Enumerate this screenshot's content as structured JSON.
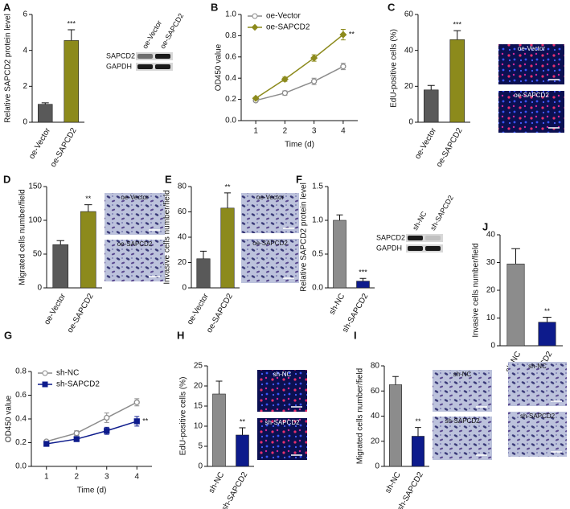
{
  "chart_data": [
    {
      "type": "bar",
      "label": "A",
      "ylabel": "Relative SAPCD2 protein level",
      "categories": [
        "oe-Vector",
        "oe-SAPCD2"
      ],
      "values": [
        1.0,
        4.55
      ],
      "errors": [
        0.08,
        0.6
      ],
      "colors": [
        "#595959",
        "#8c8a1c"
      ],
      "ylim": [
        0,
        6
      ],
      "yticks": [
        0,
        2,
        4,
        6
      ],
      "annotation": "***",
      "blot": {
        "rows": [
          "SAPCD2",
          "GAPDH"
        ],
        "lanes": [
          "oe-Vector",
          "oe-SAPCD2"
        ]
      }
    },
    {
      "type": "line",
      "label": "B",
      "ylabel": "OD450 value",
      "xlabel": "Time (d)",
      "x": [
        1,
        2,
        3,
        4
      ],
      "xlim": [
        0.5,
        4.5
      ],
      "xticks": [
        1,
        2,
        3,
        4
      ],
      "ylim": [
        0,
        1.0
      ],
      "yticks": [
        {
          "value": 0,
          "label": "0.0"
        },
        0.2,
        0.4,
        0.6,
        0.8,
        {
          "value": 1,
          "label": "1.0"
        }
      ],
      "series": [
        {
          "name": "oe-Vector",
          "color": "#8c8c8c",
          "marker": "open-circle",
          "values": [
            0.19,
            0.26,
            0.37,
            0.51
          ],
          "errors": [
            0.01,
            0.02,
            0.03,
            0.03
          ]
        },
        {
          "name": "oe-SAPCD2",
          "color": "#8c8a1c",
          "marker": "diamond",
          "values": [
            0.21,
            0.39,
            0.59,
            0.81
          ],
          "errors": [
            0.01,
            0.02,
            0.03,
            0.05
          ]
        }
      ],
      "annotation": "**",
      "legend": "upper left"
    },
    {
      "type": "bar",
      "label": "C",
      "ylabel": "EdU-positive cells (%)",
      "categories": [
        "oe-Vector",
        "oe-SAPCD2"
      ],
      "values": [
        18,
        46
      ],
      "errors": [
        2.5,
        5
      ],
      "colors": [
        "#595959",
        "#8c8a1c"
      ],
      "ylim": [
        0,
        60
      ],
      "yticks": [
        0,
        20,
        40,
        60
      ],
      "annotation": "***",
      "image_labels": [
        "oe-Vector",
        "oe-SAPCD2"
      ],
      "image_style": "fluorescence"
    },
    {
      "type": "bar",
      "label": "D",
      "ylabel": "Migrated cells number/field",
      "categories": [
        "oe-Vector",
        "oe-SAPCD2"
      ],
      "values": [
        64,
        113
      ],
      "errors": [
        6,
        10
      ],
      "colors": [
        "#595959",
        "#8c8a1c"
      ],
      "ylim": [
        0,
        150
      ],
      "yticks": [
        0,
        50,
        100,
        150
      ],
      "annotation": "**",
      "image_labels": [
        "oe-Vector",
        "oe-SAPCD2"
      ],
      "image_style": "stain"
    },
    {
      "type": "bar",
      "label": "E",
      "ylabel": "Invasive cells number/field",
      "categories": [
        "oe-Vector",
        "oe-SAPCD2"
      ],
      "values": [
        23,
        63
      ],
      "errors": [
        6,
        12
      ],
      "colors": [
        "#595959",
        "#8c8a1c"
      ],
      "ylim": [
        0,
        80
      ],
      "yticks": [
        0,
        20,
        40,
        60,
        80
      ],
      "annotation": "**",
      "image_labels": [
        "oe-Vector",
        "oe-SAPCD2"
      ],
      "image_style": "stain"
    },
    {
      "type": "bar",
      "label": "F",
      "ylabel": "Relative SAPCD2 protein level",
      "categories": [
        "sh-NC",
        "sh-SAPCD2"
      ],
      "values": [
        1.0,
        0.1
      ],
      "errors": [
        0.08,
        0.04
      ],
      "colors": [
        "#8c8c8c",
        "#0d1b8c"
      ],
      "ylim": [
        0,
        1.5
      ],
      "yticks": [
        {
          "value": 0,
          "label": "0.0"
        },
        0.5,
        {
          "value": 1,
          "label": "1.0"
        },
        1.5
      ],
      "annotation": "***",
      "blot": {
        "rows": [
          "SAPCD2",
          "GAPDH"
        ],
        "lanes": [
          "sh-NC",
          "sh-SAPCD2"
        ]
      }
    },
    {
      "type": "bar",
      "label": "J",
      "ylabel": "Invasive cells number/field",
      "categories": [
        "sh-NC",
        "sh-SAPCD2"
      ],
      "values": [
        29.5,
        8.5
      ],
      "errors": [
        5.5,
        1.8
      ],
      "colors": [
        "#8c8c8c",
        "#0d1b8c"
      ],
      "ylim": [
        0,
        40
      ],
      "yticks": [
        0,
        10,
        20,
        30,
        40
      ],
      "annotation": "**",
      "image_labels": [
        "sh-NC",
        "sh-SAPCD2"
      ],
      "image_style": "stain"
    },
    {
      "type": "line",
      "label": "G",
      "ylabel": "OD450 value",
      "xlabel": "Time (d)",
      "x": [
        1,
        2,
        3,
        4
      ],
      "xlim": [
        0.5,
        4.5
      ],
      "xticks": [
        1,
        2,
        3,
        4
      ],
      "ylim": [
        0,
        0.8
      ],
      "yticks": [
        {
          "value": 0,
          "label": "0.0"
        },
        0.2,
        0.4,
        0.6,
        0.8
      ],
      "series": [
        {
          "name": "sh-NC",
          "color": "#8c8c8c",
          "marker": "open-circle",
          "values": [
            0.21,
            0.28,
            0.41,
            0.54
          ],
          "errors": [
            0.01,
            0.02,
            0.04,
            0.03
          ]
        },
        {
          "name": "sh-SAPCD2",
          "color": "#0d1b8c",
          "marker": "square",
          "values": [
            0.19,
            0.23,
            0.3,
            0.38
          ],
          "errors": [
            0.01,
            0.01,
            0.03,
            0.04
          ]
        }
      ],
      "annotation": "**",
      "legend": "upper left"
    },
    {
      "type": "bar",
      "label": "H",
      "ylabel": "EdU-positive cells (%)",
      "categories": [
        "sh-NC",
        "sh-SAPCD2"
      ],
      "values": [
        18,
        7.8
      ],
      "errors": [
        3.2,
        1.8
      ],
      "colors": [
        "#8c8c8c",
        "#0d1b8c"
      ],
      "ylim": [
        0,
        25
      ],
      "yticks": [
        0,
        5,
        10,
        15,
        20,
        25
      ],
      "annotation": "**",
      "image_labels": [
        "sh-NC",
        "sh-SAPCD2"
      ],
      "image_style": "fluorescence"
    },
    {
      "type": "bar",
      "label": "I",
      "ylabel": "Migrated cells number/field",
      "categories": [
        "sh-NC",
        "sh-SAPCD2"
      ],
      "values": [
        65,
        24
      ],
      "errors": [
        6.5,
        7
      ],
      "colors": [
        "#8c8c8c",
        "#0d1b8c"
      ],
      "ylim": [
        0,
        80
      ],
      "yticks": [
        0,
        20,
        40,
        60,
        80
      ],
      "annotation": "**",
      "image_labels": [
        "sh-NC",
        "sh-SAPCD2"
      ],
      "image_style": "stain"
    }
  ]
}
